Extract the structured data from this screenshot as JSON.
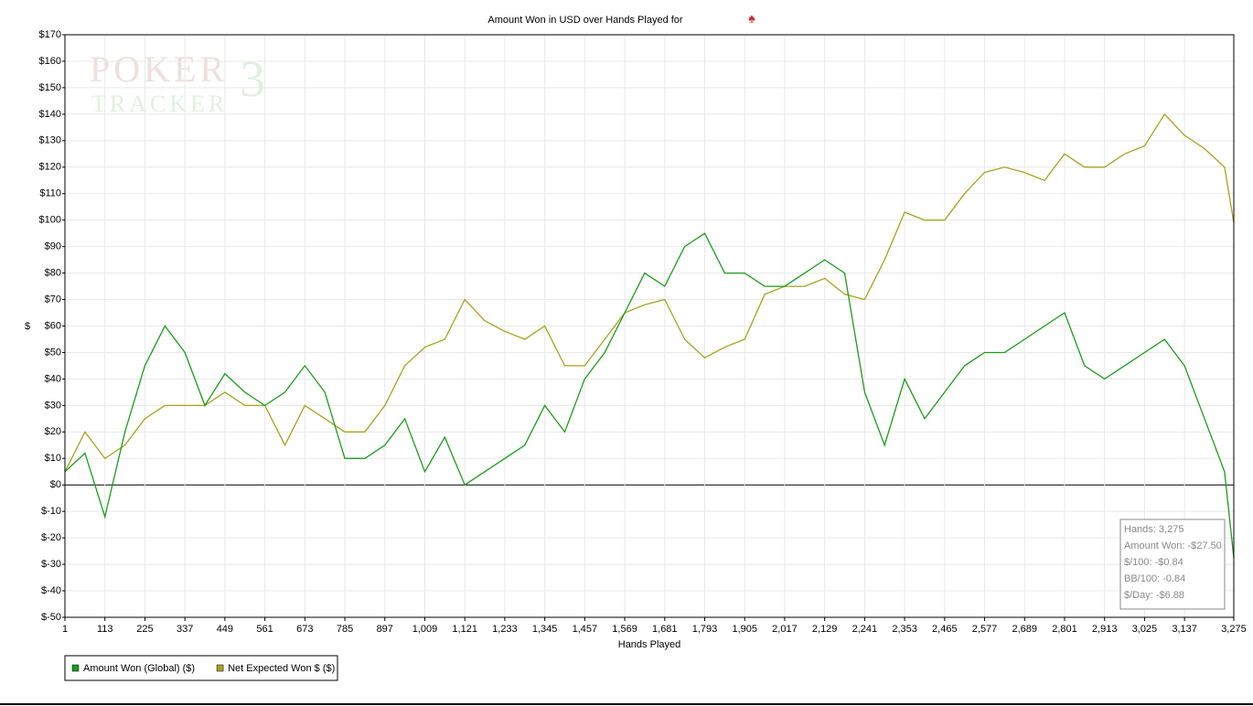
{
  "chart_data": {
    "type": "line",
    "title": "Amount Won in USD over Hands Played for",
    "watermark": [
      "POKER",
      "TRACKER",
      "3"
    ],
    "xlabel": "Hands Played",
    "ylabel": "$",
    "x": [
      1,
      57,
      113,
      169,
      225,
      281,
      337,
      393,
      449,
      505,
      561,
      617,
      673,
      729,
      785,
      841,
      897,
      953,
      1009,
      1065,
      1121,
      1177,
      1233,
      1289,
      1345,
      1401,
      1457,
      1513,
      1569,
      1625,
      1681,
      1737,
      1793,
      1849,
      1905,
      1961,
      2017,
      2073,
      2129,
      2185,
      2241,
      2297,
      2353,
      2409,
      2465,
      2521,
      2577,
      2633,
      2689,
      2745,
      2801,
      2857,
      2913,
      2969,
      3025,
      3081,
      3137,
      3193,
      3249,
      3275
    ],
    "series": [
      {
        "name": "Amount Won (Global) ($)",
        "color": "#1a9c1a",
        "values": [
          5,
          12,
          -12,
          20,
          45,
          60,
          50,
          30,
          42,
          35,
          30,
          35,
          45,
          35,
          10,
          10,
          15,
          25,
          5,
          18,
          0,
          5,
          10,
          15,
          30,
          20,
          40,
          50,
          65,
          80,
          75,
          90,
          95,
          80,
          80,
          75,
          75,
          80,
          85,
          80,
          35,
          15,
          40,
          25,
          35,
          45,
          50,
          50,
          55,
          60,
          65,
          45,
          40,
          45,
          50,
          55,
          45,
          25,
          5,
          -27.5
        ]
      },
      {
        "name": "Net Expected Won $ ($)",
        "color": "#a8a21c",
        "values": [
          5,
          20,
          10,
          15,
          25,
          30,
          30,
          30,
          35,
          30,
          30,
          15,
          30,
          25,
          20,
          20,
          30,
          45,
          52,
          55,
          70,
          62,
          58,
          55,
          60,
          45,
          45,
          55,
          65,
          68,
          70,
          55,
          48,
          52,
          55,
          72,
          75,
          75,
          78,
          72,
          70,
          85,
          103,
          100,
          100,
          110,
          118,
          120,
          118,
          115,
          125,
          120,
          120,
          125,
          128,
          140,
          132,
          127,
          120,
          99
        ]
      }
    ],
    "xlim": [
      1,
      3275
    ],
    "ylim": [
      -50,
      170
    ],
    "xticks": [
      1,
      113,
      225,
      337,
      449,
      561,
      673,
      785,
      897,
      {
        "value": 1009,
        "label": "1,009"
      },
      {
        "value": 1121,
        "label": "1,121"
      },
      {
        "value": 1233,
        "label": "1,233"
      },
      {
        "value": 1345,
        "label": "1,345"
      },
      {
        "value": 1457,
        "label": "1,457"
      },
      {
        "value": 1569,
        "label": "1,569"
      },
      {
        "value": 1681,
        "label": "1,681"
      },
      {
        "value": 1793,
        "label": "1,793"
      },
      {
        "value": 1905,
        "label": "1,905"
      },
      {
        "value": 2017,
        "label": "2,017"
      },
      {
        "value": 2129,
        "label": "2,129"
      },
      {
        "value": 2241,
        "label": "2,241"
      },
      {
        "value": 2353,
        "label": "2,353"
      },
      {
        "value": 2465,
        "label": "2,465"
      },
      {
        "value": 2577,
        "label": "2,577"
      },
      {
        "value": 2689,
        "label": "2,689"
      },
      {
        "value": 2801,
        "label": "2,801"
      },
      {
        "value": 2913,
        "label": "2,913"
      },
      {
        "value": 3025,
        "label": "3,025"
      },
      {
        "value": 3137,
        "label": "3,137"
      },
      {
        "value": 3275,
        "label": "3,275"
      }
    ],
    "yticks": [
      {
        "value": -50,
        "label": "$-50"
      },
      {
        "value": -40,
        "label": "$-40"
      },
      {
        "value": -30,
        "label": "$-30"
      },
      {
        "value": -20,
        "label": "$-20"
      },
      {
        "value": -10,
        "label": "$-10"
      },
      {
        "value": 0,
        "label": "$0"
      },
      {
        "value": 10,
        "label": "$10"
      },
      {
        "value": 20,
        "label": "$20"
      },
      {
        "value": 30,
        "label": "$30"
      },
      {
        "value": 40,
        "label": "$40"
      },
      {
        "value": 50,
        "label": "$50"
      },
      {
        "value": 60,
        "label": "$60"
      },
      {
        "value": 70,
        "label": "$70"
      },
      {
        "value": 80,
        "label": "$80"
      },
      {
        "value": 90,
        "label": "$90"
      },
      {
        "value": 100,
        "label": "$100"
      },
      {
        "value": 110,
        "label": "$110"
      },
      {
        "value": 120,
        "label": "$120"
      },
      {
        "value": 130,
        "label": "$130"
      },
      {
        "value": 140,
        "label": "$140"
      },
      {
        "value": 150,
        "label": "$150"
      },
      {
        "value": 160,
        "label": "$160"
      },
      {
        "value": 170,
        "label": "$170"
      }
    ],
    "grid": true,
    "legend": "bottom-left",
    "stats": [
      "Hands: 3,275",
      "Amount Won: -$27.50",
      "$/100: -$0.84",
      "BB/100: -0.84",
      "$/Day: -$6.88"
    ]
  }
}
